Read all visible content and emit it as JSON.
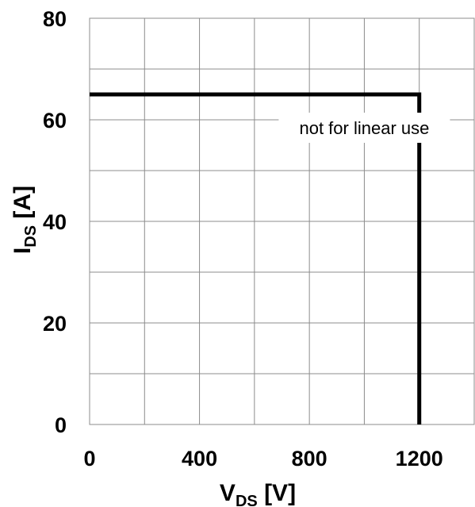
{
  "chart_data": {
    "type": "line",
    "xlabel": {
      "main": "V",
      "sub": "DS",
      "unit": " [V]"
    },
    "ylabel": {
      "main": "I",
      "sub": "DS",
      "unit": " [A]"
    },
    "xlim": [
      0,
      1400
    ],
    "ylim": [
      0,
      80
    ],
    "x_ticks": [
      0,
      400,
      800,
      1200
    ],
    "y_ticks": [
      0,
      20,
      40,
      60,
      80
    ],
    "x_gridlines": [
      0,
      200,
      400,
      600,
      800,
      1000,
      1200,
      1400
    ],
    "y_gridlines": [
      0,
      10,
      20,
      30,
      40,
      50,
      60,
      70,
      80
    ],
    "grid": true,
    "series": [
      {
        "x": [
          0,
          1200,
          1200
        ],
        "y": [
          65,
          65,
          0
        ]
      }
    ],
    "annotations": [
      {
        "text": "not for linear use",
        "x": 1000,
        "y": 57.5
      }
    ]
  }
}
